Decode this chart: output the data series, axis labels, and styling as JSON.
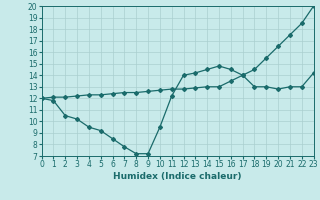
{
  "x": [
    0,
    1,
    2,
    3,
    4,
    5,
    6,
    7,
    8,
    9,
    10,
    11,
    12,
    13,
    14,
    15,
    16,
    17,
    18,
    19,
    20,
    21,
    22,
    23
  ],
  "line1_y": [
    12,
    11.8,
    10.5,
    10.2,
    9.5,
    9.2,
    8.5,
    7.8,
    7.2,
    7.2,
    9.5,
    12.2,
    14.0,
    14.2,
    14.5,
    14.8,
    14.5,
    14.0,
    13.0,
    13.0,
    12.8,
    13.0,
    13.0,
    14.2
  ],
  "line2_y": [
    12.0,
    12.1,
    12.1,
    12.2,
    12.3,
    12.3,
    12.4,
    12.5,
    12.5,
    12.6,
    12.7,
    12.8,
    12.8,
    12.9,
    13.0,
    13.0,
    13.5,
    14.0,
    14.5,
    15.5,
    16.5,
    17.5,
    18.5,
    20.0
  ],
  "bg_color": "#c8eaea",
  "grid_color": "#aacfcf",
  "line_color": "#1a6b6b",
  "xlabel": "Humidex (Indice chaleur)",
  "xlim": [
    0,
    23
  ],
  "ylim": [
    7,
    20
  ],
  "yticks": [
    7,
    8,
    9,
    10,
    11,
    12,
    13,
    14,
    15,
    16,
    17,
    18,
    19,
    20
  ],
  "xticks": [
    0,
    1,
    2,
    3,
    4,
    5,
    6,
    7,
    8,
    9,
    10,
    11,
    12,
    13,
    14,
    15,
    16,
    17,
    18,
    19,
    20,
    21,
    22,
    23
  ],
  "marker": "D",
  "markersize": 2.0,
  "linewidth": 0.9,
  "tick_fontsize": 5.5,
  "xlabel_fontsize": 6.5
}
